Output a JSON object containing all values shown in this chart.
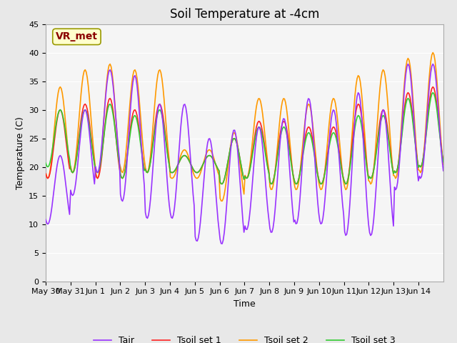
{
  "title": "Soil Temperature at -4cm",
  "xlabel": "Time",
  "ylabel": "Temperature (C)",
  "ylim": [
    0,
    45
  ],
  "yticks": [
    0,
    5,
    10,
    15,
    20,
    25,
    30,
    35,
    40,
    45
  ],
  "annotation_text": "VR_met",
  "annotation_color": "#8B0000",
  "annotation_bg": "#FFFFCC",
  "annotation_edge": "#999900",
  "fig_bg": "#E8E8E8",
  "plot_bg": "#DCDCDC",
  "inner_bg": "#F5F5F5",
  "line_colors": {
    "Tair": "#9933FF",
    "Tsoil set 1": "#FF2222",
    "Tsoil set 2": "#FF9900",
    "Tsoil set 3": "#33CC33"
  },
  "line_width": 1.2,
  "legend_fontsize": 9,
  "title_fontsize": 12,
  "tick_label_fontsize": 8,
  "axis_label_fontsize": 9,
  "n_days": 16,
  "hours_per_day": 24
}
